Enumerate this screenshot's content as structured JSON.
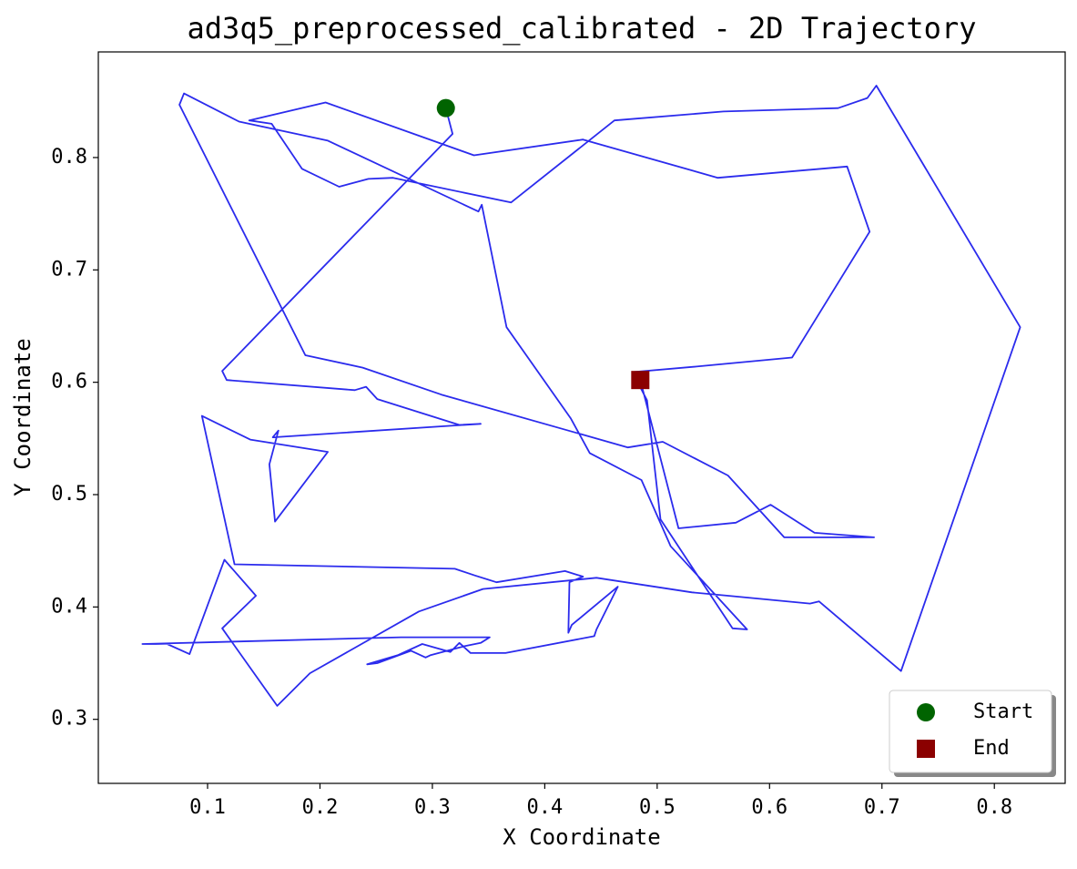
{
  "chart_data": {
    "type": "line",
    "title": "ad3q5_preprocessed_calibrated - 2D Trajectory",
    "xlabel": "X Coordinate",
    "ylabel": "Y Coordinate",
    "color": "#2b2bed",
    "x": [
      0.312,
      0.318,
      0.113,
      0.117,
      0.231,
      0.241,
      0.251,
      0.324,
      0.343,
      0.158,
      0.163,
      0.155,
      0.16,
      0.207,
      0.138,
      0.095,
      0.124,
      0.32,
      0.338,
      0.357,
      0.418,
      0.434,
      0.422,
      0.421,
      0.424,
      0.465,
      0.446,
      0.444,
      0.365,
      0.334,
      0.324,
      0.316,
      0.291,
      0.269,
      0.242,
      0.251,
      0.281,
      0.294,
      0.298,
      0.328,
      0.343,
      0.351,
      0.272,
      0.042,
      0.064,
      0.084,
      0.115,
      0.143,
      0.113,
      0.162,
      0.191,
      0.288,
      0.345,
      0.446,
      0.531,
      0.563,
      0.636,
      0.644,
      0.717,
      0.823,
      0.695,
      0.687,
      0.661,
      0.559,
      0.462,
      0.37,
      0.265,
      0.243,
      0.217,
      0.184,
      0.157,
      0.137,
      0.205,
      0.337,
      0.434,
      0.554,
      0.669,
      0.689,
      0.62,
      0.535,
      0.478,
      0.491,
      0.503,
      0.567,
      0.58,
      0.512,
      0.486,
      0.44,
      0.423,
      0.366,
      0.344,
      0.341,
      0.207,
      0.128,
      0.079,
      0.075,
      0.187,
      0.238,
      0.308,
      0.474,
      0.505,
      0.563,
      0.613,
      0.693,
      0.64,
      0.601,
      0.57,
      0.519,
      0.485
    ],
    "values": [
      0.844,
      0.821,
      0.61,
      0.602,
      0.593,
      0.596,
      0.585,
      0.562,
      0.563,
      0.551,
      0.557,
      0.527,
      0.476,
      0.538,
      0.549,
      0.57,
      0.438,
      0.434,
      0.428,
      0.422,
      0.432,
      0.427,
      0.422,
      0.377,
      0.384,
      0.418,
      0.38,
      0.374,
      0.359,
      0.359,
      0.368,
      0.36,
      0.367,
      0.357,
      0.349,
      0.35,
      0.361,
      0.355,
      0.357,
      0.365,
      0.368,
      0.373,
      0.373,
      0.367,
      0.367,
      0.358,
      0.442,
      0.41,
      0.381,
      0.312,
      0.341,
      0.396,
      0.416,
      0.426,
      0.413,
      0.41,
      0.403,
      0.405,
      0.343,
      0.649,
      0.864,
      0.853,
      0.844,
      0.841,
      0.833,
      0.76,
      0.782,
      0.781,
      0.774,
      0.79,
      0.83,
      0.833,
      0.849,
      0.802,
      0.816,
      0.782,
      0.792,
      0.734,
      0.622,
      0.614,
      0.609,
      0.584,
      0.478,
      0.381,
      0.38,
      0.454,
      0.513,
      0.537,
      0.568,
      0.649,
      0.758,
      0.752,
      0.815,
      0.832,
      0.857,
      0.847,
      0.624,
      0.613,
      0.589,
      0.542,
      0.547,
      0.517,
      0.462,
      0.462,
      0.466,
      0.491,
      0.475,
      0.47,
      0.602
    ],
    "markers": [
      {
        "name": "Start",
        "x": 0.312,
        "y": 0.844,
        "color": "#006400",
        "shape": "circle"
      },
      {
        "name": "End",
        "x": 0.485,
        "y": 0.602,
        "color": "#8b0000",
        "shape": "square"
      }
    ],
    "xlim": [
      0.0028,
      0.863
    ],
    "ylim": [
      0.243,
      0.894
    ],
    "xticks": [
      0.1,
      0.2,
      0.3,
      0.4,
      0.5,
      0.6,
      0.7,
      0.8
    ],
    "yticks": [
      0.3,
      0.4,
      0.5,
      0.6,
      0.7,
      0.8
    ],
    "legend": "lower right"
  }
}
